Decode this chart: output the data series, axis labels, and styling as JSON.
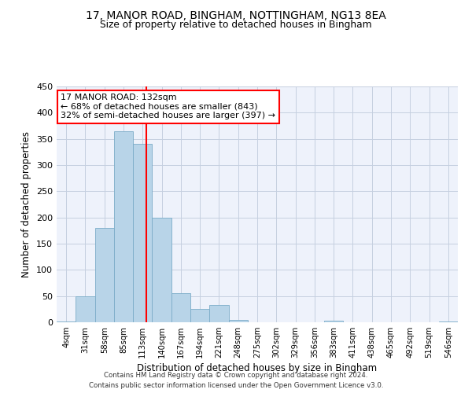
{
  "title1": "17, MANOR ROAD, BINGHAM, NOTTINGHAM, NG13 8EA",
  "title2": "Size of property relative to detached houses in Bingham",
  "xlabel": "Distribution of detached houses by size in Bingham",
  "ylabel": "Number of detached properties",
  "bin_labels": [
    "4sqm",
    "31sqm",
    "58sqm",
    "85sqm",
    "113sqm",
    "140sqm",
    "167sqm",
    "194sqm",
    "221sqm",
    "248sqm",
    "275sqm",
    "302sqm",
    "329sqm",
    "356sqm",
    "383sqm",
    "411sqm",
    "438sqm",
    "465sqm",
    "492sqm",
    "519sqm",
    "546sqm"
  ],
  "bar_values": [
    2,
    49,
    180,
    365,
    340,
    200,
    55,
    25,
    33,
    5,
    0,
    0,
    0,
    0,
    3,
    0,
    0,
    0,
    0,
    0,
    2
  ],
  "bar_color": "#b8d4e8",
  "bar_edge_color": "#7bacc8",
  "vline_color": "red",
  "annotation_title": "17 MANOR ROAD: 132sqm",
  "annotation_line1": "← 68% of detached houses are smaller (843)",
  "annotation_line2": "32% of semi-detached houses are larger (397) →",
  "annotation_box_color": "white",
  "annotation_box_edge_color": "red",
  "ylim": [
    0,
    450
  ],
  "yticks": [
    0,
    50,
    100,
    150,
    200,
    250,
    300,
    350,
    400,
    450
  ],
  "footnote1": "Contains HM Land Registry data © Crown copyright and database right 2024.",
  "footnote2": "Contains public sector information licensed under the Open Government Licence v3.0.",
  "bg_color": "#eef2fb",
  "grid_color": "#c5cfe0"
}
